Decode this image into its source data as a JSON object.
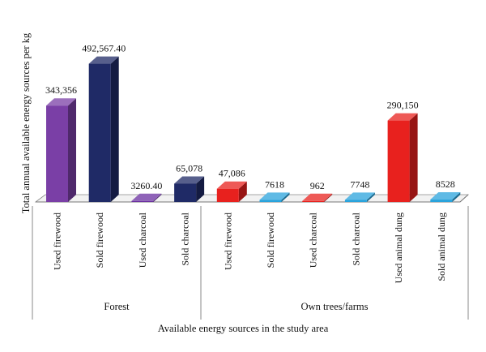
{
  "chart_data": {
    "type": "bar",
    "style": "3d",
    "xlabel": "Available energy sources in the study area",
    "ylabel": "Total annual available energy sources per kg",
    "ylim": [
      0,
      500000
    ],
    "grid": false,
    "legend": "none",
    "groups": [
      {
        "name": "Forest",
        "count": 4
      },
      {
        "name": "Own trees/farms",
        "count": 6
      }
    ],
    "categories": [
      "Used firewood",
      "Sold firewood",
      "Used charcoal",
      "Sold charcoal",
      "Used firewood",
      "Sold firewood",
      "Used charcoal",
      "Sold charcoal",
      "Used animal dung",
      "Sold animal dung"
    ],
    "values": [
      343356,
      492567.4,
      3260.4,
      65078,
      47086,
      7618,
      962,
      7748,
      290150,
      8528
    ],
    "value_labels": [
      "343,356",
      "492,567.40",
      "3260.40",
      "65,078",
      "47,086",
      "7618",
      "962",
      "7748",
      "290,150",
      "8528"
    ],
    "colors": [
      "#7a3fa6",
      "#1f2a66",
      "#6a2fa0",
      "#1f2a66",
      "#e8211e",
      "#29a3dc",
      "#e8211e",
      "#29a3dc",
      "#e8211e",
      "#29a3dc"
    ]
  }
}
